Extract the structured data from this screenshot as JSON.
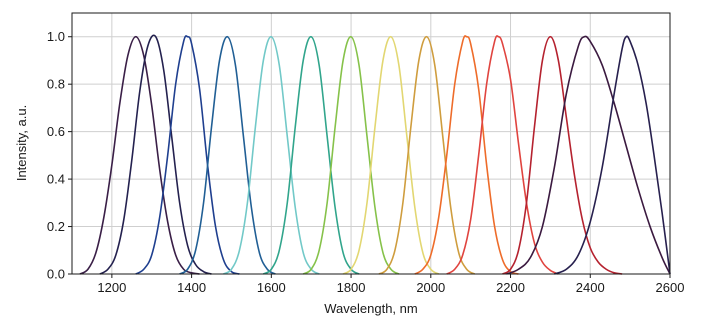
{
  "chart_data": {
    "type": "line",
    "title": "",
    "xlabel": "Wavelength, nm",
    "ylabel": "Intensity, a.u.",
    "xlim": [
      1100,
      2600
    ],
    "ylim": [
      0,
      1.1
    ],
    "x_ticks": [
      1200,
      1400,
      1600,
      1800,
      2000,
      2200,
      2400,
      2600
    ],
    "y_ticks": [
      0.0,
      0.2,
      0.4,
      0.6,
      0.8,
      1.0
    ],
    "x_tick_labels": [
      "1200",
      "1400",
      "1600",
      "1800",
      "2000",
      "2200",
      "2400",
      "2600"
    ],
    "y_tick_labels": [
      "0.0",
      "0.2",
      "0.4",
      "0.6",
      "0.8",
      "1.0"
    ],
    "grid": "on",
    "series": [
      {
        "color": "#3a1f47",
        "x": [
          1120,
          1140,
          1160,
          1180,
          1200,
          1220,
          1240,
          1260,
          1280,
          1300,
          1320,
          1340,
          1360,
          1380,
          1400,
          1420
        ],
        "values": [
          0.0,
          0.02,
          0.09,
          0.24,
          0.46,
          0.72,
          0.92,
          1.0,
          0.92,
          0.71,
          0.44,
          0.22,
          0.08,
          0.02,
          0.005,
          0.0
        ]
      },
      {
        "color": "#24214f",
        "x": [
          1170,
          1190,
          1210,
          1230,
          1250,
          1270,
          1290,
          1310,
          1330,
          1350,
          1370,
          1390,
          1410,
          1430,
          1450
        ],
        "values": [
          0.0,
          0.02,
          0.08,
          0.23,
          0.48,
          0.77,
          0.96,
          1.0,
          0.86,
          0.58,
          0.3,
          0.12,
          0.04,
          0.01,
          0.0
        ]
      },
      {
        "color": "#1f3f8f",
        "x": [
          1260,
          1280,
          1300,
          1320,
          1340,
          1360,
          1380,
          1390,
          1400,
          1420,
          1440,
          1460,
          1480,
          1500,
          1520
        ],
        "values": [
          0.0,
          0.02,
          0.08,
          0.24,
          0.5,
          0.8,
          0.98,
          1.0,
          0.97,
          0.78,
          0.46,
          0.2,
          0.06,
          0.01,
          0.0
        ]
      },
      {
        "color": "#215f95",
        "x": [
          1370,
          1390,
          1410,
          1430,
          1450,
          1470,
          1490,
          1510,
          1530,
          1550,
          1570,
          1590,
          1610
        ],
        "values": [
          0.0,
          0.02,
          0.1,
          0.3,
          0.62,
          0.9,
          1.0,
          0.88,
          0.58,
          0.28,
          0.09,
          0.02,
          0.0
        ]
      },
      {
        "color": "#72c9c8",
        "x": [
          1480,
          1500,
          1520,
          1540,
          1560,
          1580,
          1600,
          1620,
          1640,
          1660,
          1680,
          1700,
          1720
        ],
        "values": [
          0.0,
          0.02,
          0.1,
          0.3,
          0.62,
          0.9,
          1.0,
          0.88,
          0.58,
          0.28,
          0.09,
          0.02,
          0.0
        ]
      },
      {
        "color": "#31a58c",
        "x": [
          1580,
          1600,
          1620,
          1640,
          1660,
          1680,
          1700,
          1720,
          1740,
          1760,
          1780,
          1800,
          1820
        ],
        "values": [
          0.0,
          0.02,
          0.1,
          0.3,
          0.62,
          0.9,
          1.0,
          0.88,
          0.58,
          0.28,
          0.09,
          0.02,
          0.0
        ]
      },
      {
        "color": "#86c24a",
        "x": [
          1680,
          1700,
          1720,
          1740,
          1760,
          1780,
          1800,
          1820,
          1840,
          1860,
          1880,
          1900,
          1920
        ],
        "values": [
          0.0,
          0.02,
          0.1,
          0.3,
          0.62,
          0.9,
          1.0,
          0.88,
          0.58,
          0.28,
          0.09,
          0.02,
          0.0
        ]
      },
      {
        "color": "#e2d772",
        "x": [
          1780,
          1800,
          1820,
          1840,
          1860,
          1880,
          1900,
          1920,
          1940,
          1960,
          1980,
          2000,
          2020
        ],
        "values": [
          0.0,
          0.02,
          0.1,
          0.3,
          0.62,
          0.9,
          1.0,
          0.88,
          0.58,
          0.28,
          0.09,
          0.02,
          0.0
        ]
      },
      {
        "color": "#cf9d3e",
        "x": [
          1870,
          1890,
          1910,
          1930,
          1950,
          1970,
          1990,
          2010,
          2030,
          2050,
          2070,
          2090,
          2110
        ],
        "values": [
          0.0,
          0.02,
          0.1,
          0.3,
          0.62,
          0.9,
          1.0,
          0.88,
          0.58,
          0.28,
          0.09,
          0.02,
          0.0
        ]
      },
      {
        "color": "#ee6c2a",
        "x": [
          1960,
          1980,
          2000,
          2020,
          2040,
          2060,
          2080,
          2090,
          2100,
          2120,
          2140,
          2160,
          2180,
          2200,
          2220
        ],
        "values": [
          0.0,
          0.02,
          0.08,
          0.24,
          0.5,
          0.8,
          0.98,
          1.0,
          0.97,
          0.78,
          0.46,
          0.2,
          0.06,
          0.01,
          0.0
        ]
      },
      {
        "color": "#e0443f",
        "x": [
          2040,
          2060,
          2080,
          2100,
          2120,
          2140,
          2160,
          2170,
          2180,
          2200,
          2220,
          2240,
          2260,
          2280,
          2300,
          2320
        ],
        "values": [
          0.0,
          0.02,
          0.08,
          0.23,
          0.5,
          0.8,
          0.98,
          1.0,
          0.97,
          0.82,
          0.55,
          0.3,
          0.13,
          0.05,
          0.015,
          0.0
        ]
      },
      {
        "color": "#b5222f",
        "x": [
          2180,
          2200,
          2220,
          2240,
          2260,
          2280,
          2300,
          2320,
          2340,
          2360,
          2380,
          2400,
          2420,
          2440,
          2460,
          2480
        ],
        "values": [
          0.0,
          0.02,
          0.1,
          0.3,
          0.62,
          0.9,
          1.0,
          0.9,
          0.66,
          0.42,
          0.23,
          0.11,
          0.05,
          0.02,
          0.005,
          0.0
        ]
      },
      {
        "color": "#3b1a40",
        "x": [
          2190,
          2220,
          2250,
          2280,
          2310,
          2340,
          2370,
          2385,
          2400,
          2430,
          2460,
          2490,
          2520,
          2550,
          2580,
          2600
        ],
        "values": [
          0.0,
          0.02,
          0.07,
          0.2,
          0.45,
          0.76,
          0.96,
          1.0,
          0.98,
          0.88,
          0.72,
          0.54,
          0.36,
          0.2,
          0.07,
          0.0
        ]
      },
      {
        "color": "#27204e",
        "x": [
          2310,
          2340,
          2370,
          2400,
          2430,
          2460,
          2480,
          2490,
          2500,
          2520,
          2540,
          2560,
          2580,
          2600
        ],
        "values": [
          0.0,
          0.02,
          0.08,
          0.22,
          0.45,
          0.76,
          0.95,
          1.0,
          0.98,
          0.88,
          0.72,
          0.5,
          0.26,
          0.0
        ]
      }
    ]
  }
}
